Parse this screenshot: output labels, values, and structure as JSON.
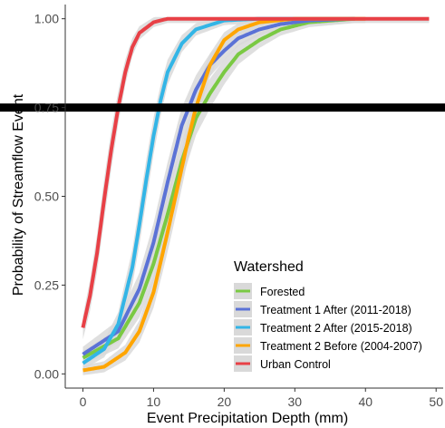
{
  "chart_data": {
    "type": "line",
    "xlabel": "Event Precipitation Depth (mm)",
    "ylabel": "Probability of Streamflow Event",
    "xlim": [
      -2.5,
      51
    ],
    "ylim": [
      -0.04,
      1.04
    ],
    "x_ticks": [
      0,
      10,
      20,
      30,
      40,
      50
    ],
    "y_ticks": [
      0.0,
      0.25,
      0.5,
      0.75,
      1.0
    ],
    "x_tick_labels": [
      "0",
      "10",
      "20",
      "30",
      "40",
      "50"
    ],
    "y_tick_labels": [
      "0.00",
      "0.25",
      "0.50",
      "0.75",
      "1.00"
    ],
    "grid": false,
    "reference_line": {
      "y": 0.75,
      "color": "#000000",
      "style": "thick horizontal"
    },
    "legend": {
      "title": "Watershed",
      "position": "bottom-right"
    },
    "confidence_band_color": "#d9d9d9",
    "series": [
      {
        "name": "Forested",
        "color": "#7ac943",
        "x_range": [
          0,
          38.5
        ],
        "points": [
          [
            0,
            0.045
          ],
          [
            5,
            0.1
          ],
          [
            8,
            0.2
          ],
          [
            10,
            0.31
          ],
          [
            12,
            0.45
          ],
          [
            14,
            0.6
          ],
          [
            16,
            0.72
          ],
          [
            18,
            0.79
          ],
          [
            20,
            0.85
          ],
          [
            22,
            0.9
          ],
          [
            25,
            0.94
          ],
          [
            28,
            0.97
          ],
          [
            32,
            0.99
          ],
          [
            38.5,
            1.0
          ]
        ]
      },
      {
        "name": "Treatment 1 After (2011-2018)",
        "color": "#5b72d6",
        "x_range": [
          0,
          38.5
        ],
        "points": [
          [
            0,
            0.055
          ],
          [
            5,
            0.12
          ],
          [
            8,
            0.24
          ],
          [
            10,
            0.37
          ],
          [
            12,
            0.54
          ],
          [
            14,
            0.7
          ],
          [
            16,
            0.8
          ],
          [
            18,
            0.87
          ],
          [
            20,
            0.91
          ],
          [
            22,
            0.945
          ],
          [
            25,
            0.97
          ],
          [
            28,
            0.985
          ],
          [
            32,
            0.995
          ],
          [
            38.5,
            1.0
          ]
        ]
      },
      {
        "name": "Treatment 2 After (2015-2018)",
        "color": "#33b5e6",
        "x_range": [
          0,
          38.5
        ],
        "points": [
          [
            0,
            0.03
          ],
          [
            3,
            0.07
          ],
          [
            5,
            0.14
          ],
          [
            7,
            0.3
          ],
          [
            8,
            0.42
          ],
          [
            9,
            0.55
          ],
          [
            10,
            0.67
          ],
          [
            11,
            0.77
          ],
          [
            12,
            0.85
          ],
          [
            14,
            0.93
          ],
          [
            16,
            0.97
          ],
          [
            20,
            0.995
          ],
          [
            25,
            1.0
          ],
          [
            38.5,
            1.0
          ]
        ]
      },
      {
        "name": "Treatment 2 Before (2004-2007)",
        "color": "#ffa500",
        "x_range": [
          0,
          40
        ],
        "points": [
          [
            0,
            0.01
          ],
          [
            3,
            0.02
          ],
          [
            6,
            0.06
          ],
          [
            8,
            0.12
          ],
          [
            10,
            0.23
          ],
          [
            12,
            0.4
          ],
          [
            14,
            0.58
          ],
          [
            15,
            0.67
          ],
          [
            16,
            0.75
          ],
          [
            18,
            0.87
          ],
          [
            20,
            0.94
          ],
          [
            22,
            0.97
          ],
          [
            25,
            0.99
          ],
          [
            30,
            1.0
          ],
          [
            40,
            1.0
          ]
        ]
      },
      {
        "name": "Urban Control",
        "color": "#e84046",
        "x_range": [
          0,
          49
        ],
        "points": [
          [
            0,
            0.13
          ],
          [
            1,
            0.22
          ],
          [
            2,
            0.34
          ],
          [
            3,
            0.49
          ],
          [
            4,
            0.63
          ],
          [
            5,
            0.75
          ],
          [
            6,
            0.85
          ],
          [
            7,
            0.92
          ],
          [
            8,
            0.96
          ],
          [
            10,
            0.99
          ],
          [
            12,
            1.0
          ],
          [
            49,
            1.0
          ]
        ]
      }
    ]
  }
}
